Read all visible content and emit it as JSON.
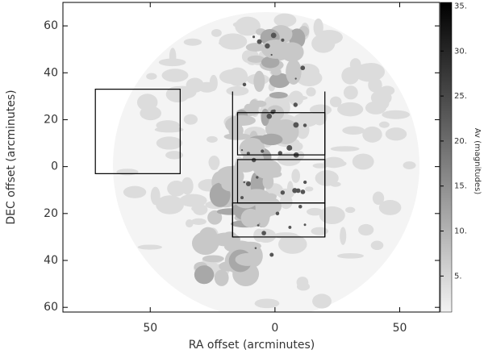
{
  "chart_data": {
    "type": "image",
    "x_label": "RA offset (arcminutes)",
    "y_label": "DEC offset (arcminutes)",
    "xlim": [
      85,
      -66
    ],
    "xticks": [
      50,
      0,
      {
        "value": -50,
        "label": "50"
      }
    ],
    "ylim": [
      -62,
      70
    ],
    "yticks": [
      60,
      40,
      20,
      0,
      {
        "value": -20,
        "label": "20"
      },
      {
        "value": -40,
        "label": "40"
      },
      {
        "value": -60,
        "label": "60"
      }
    ],
    "colorbar": {
      "label": "Av (magnitudes)",
      "lim": [
        1,
        35.4
      ],
      "ticks": [
        {
          "value": 35,
          "label": "35."
        },
        {
          "value": 30,
          "label": "30."
        },
        {
          "value": 25,
          "label": "25."
        },
        {
          "value": 20,
          "label": "20."
        },
        {
          "value": 15,
          "label": "15."
        },
        {
          "value": 10,
          "label": "10."
        },
        {
          "value": 5,
          "label": "5."
        }
      ]
    },
    "regions": [
      {
        "x": [
          72,
          38
        ],
        "y": [
          33,
          -3
        ]
      },
      {
        "x": [
          15,
          -20
        ],
        "y": [
          23,
          5
        ]
      },
      {
        "x": [
          15,
          -20
        ],
        "y": [
          3,
          -15.5
        ]
      },
      {
        "x": [
          17,
          -20
        ],
        "y": [
          -15.5,
          -30
        ]
      }
    ],
    "lines": [
      {
        "x": [
          17,
          17
        ],
        "y": [
          32,
          -30
        ]
      },
      {
        "x": [
          -20,
          -20
        ],
        "y": [
          32,
          -30
        ]
      }
    ]
  }
}
